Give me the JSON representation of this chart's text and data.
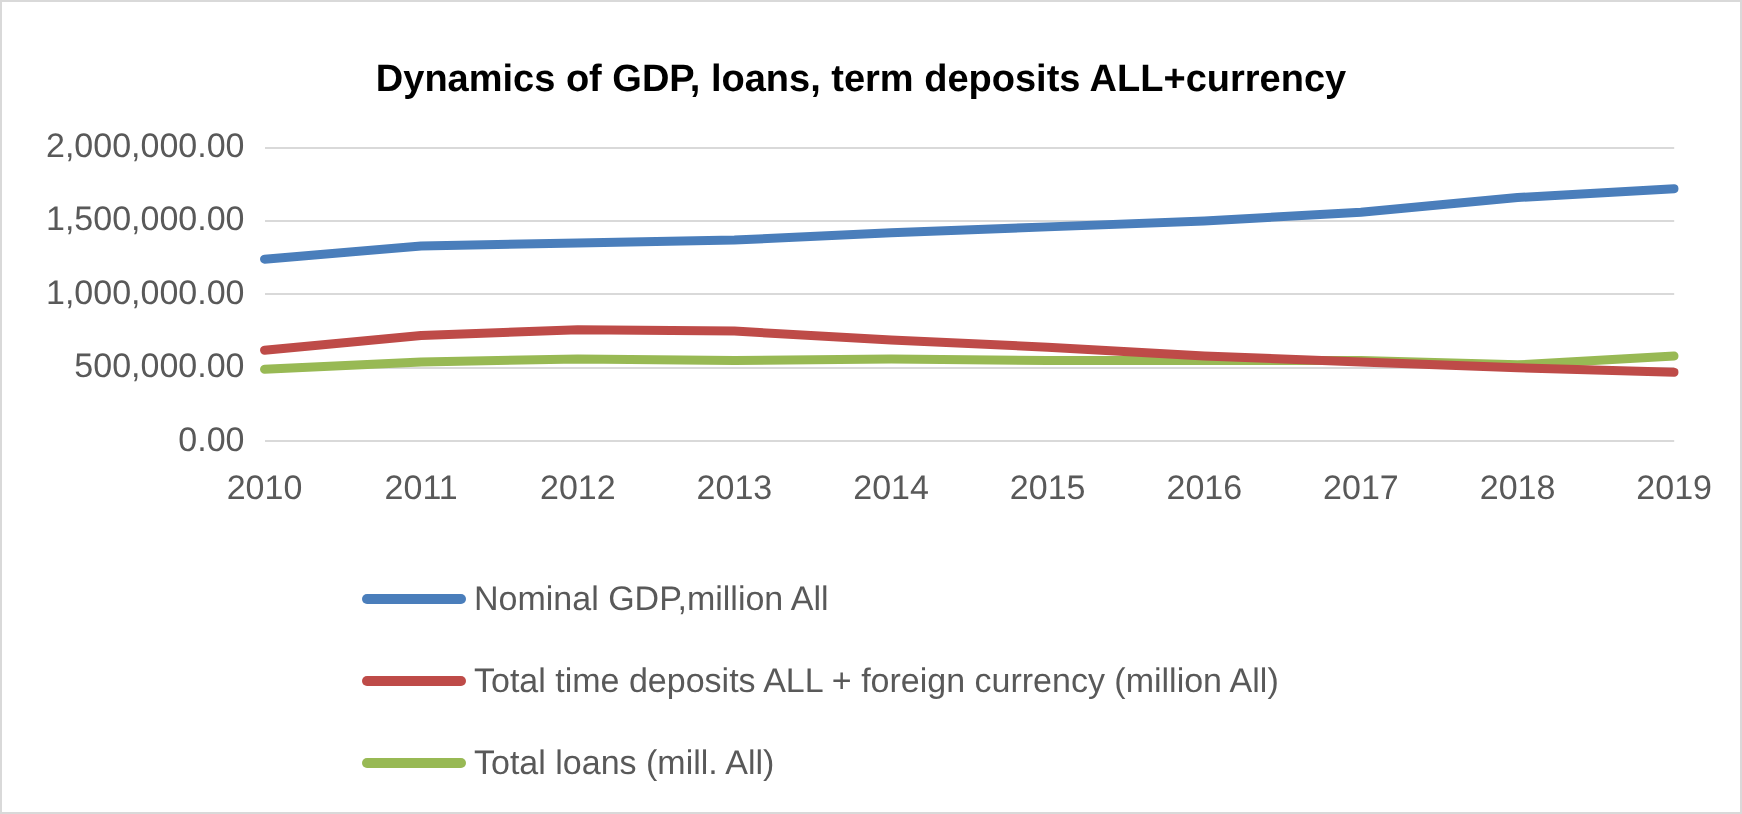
{
  "chart_data": {
    "type": "line",
    "title": "Dynamics of GDP, loans, term deposits ALL+currency",
    "categories": [
      "2010",
      "2011",
      "2012",
      "2013",
      "2014",
      "2015",
      "2016",
      "2017",
      "2018",
      "2019"
    ],
    "series": [
      {
        "name": "Nominal GDP,million All",
        "color": "#4a7ebb",
        "values": [
          1240000,
          1330000,
          1350000,
          1370000,
          1420000,
          1460000,
          1500000,
          1560000,
          1660000,
          1720000
        ]
      },
      {
        "name": "Total time deposits ALL + foreign currency (million All)",
        "color": "#be4b48",
        "values": [
          620000,
          720000,
          760000,
          750000,
          690000,
          640000,
          580000,
          540000,
          500000,
          470000
        ]
      },
      {
        "name": "Total loans (mill. All)",
        "color": "#98b954",
        "values": [
          490000,
          540000,
          560000,
          550000,
          560000,
          550000,
          550000,
          550000,
          520000,
          580000
        ]
      }
    ],
    "ylim": [
      0,
      2000000
    ],
    "yticks": [
      {
        "value": 0,
        "label": "0.00"
      },
      {
        "value": 500000,
        "label": "500,000.00"
      },
      {
        "value": 1000000,
        "label": "1,000,000.00"
      },
      {
        "value": 1500000,
        "label": "1,500,000.00"
      },
      {
        "value": 2000000,
        "label": "2,000,000.00"
      }
    ],
    "grid": "y",
    "legend": "bottom",
    "marker": "none",
    "line_style": "solid"
  }
}
